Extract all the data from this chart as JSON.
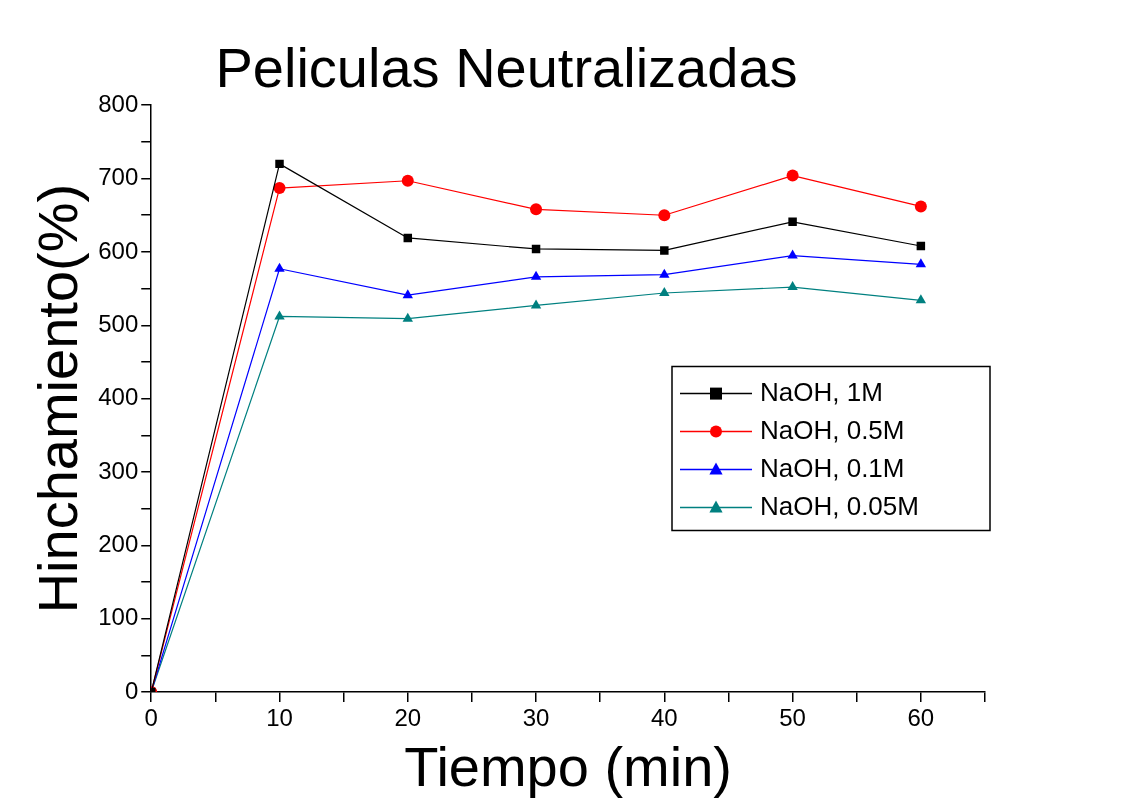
{
  "chart_data": {
    "type": "line",
    "title": "Peliculas Neutralizadas",
    "xlabel": "Tiempo (min)",
    "ylabel": "Hinchamiento(%)",
    "x": [
      0,
      10,
      20,
      30,
      40,
      50,
      60
    ],
    "series": [
      {
        "name": "NaOH, 1M",
        "color": "#000000",
        "marker": "square",
        "values": [
          0,
          720,
          619,
          604,
          602,
          641,
          608
        ]
      },
      {
        "name": "NaOH, 0.5M",
        "color": "#ff0000",
        "marker": "circle",
        "values": [
          0,
          687,
          697,
          658,
          650,
          704,
          662
        ]
      },
      {
        "name": "NaOH, 0.1M",
        "color": "#0000ff",
        "marker": "triangle",
        "values": [
          0,
          577,
          541,
          566,
          569,
          595,
          583
        ]
      },
      {
        "name": "NaOH, 0.05M",
        "color": "#008080",
        "marker": "triangle",
        "values": [
          0,
          512,
          509,
          527,
          544,
          552,
          534
        ]
      }
    ],
    "xlim": [
      0,
      65
    ],
    "xticks": [
      0,
      {
        "value": 5,
        "label": null
      },
      10,
      {
        "value": 15,
        "label": null
      },
      20,
      {
        "value": 25,
        "label": null
      },
      30,
      {
        "value": 35,
        "label": null
      },
      40,
      {
        "value": 45,
        "label": null
      },
      50,
      {
        "value": 55,
        "label": null
      },
      60,
      {
        "value": 65,
        "label": null
      }
    ],
    "ylim": [
      0,
      800
    ],
    "yticks": [
      0,
      {
        "value": 50,
        "label": null
      },
      100,
      {
        "value": 150,
        "label": null
      },
      200,
      {
        "value": 250,
        "label": null
      },
      300,
      {
        "value": 350,
        "label": null
      },
      400,
      {
        "value": 450,
        "label": null
      },
      500,
      {
        "value": 550,
        "label": null
      },
      600,
      {
        "value": 650,
        "label": null
      },
      700,
      {
        "value": 750,
        "label": null
      },
      800
    ],
    "grid": false,
    "legend": "right",
    "line_style": "solid"
  }
}
